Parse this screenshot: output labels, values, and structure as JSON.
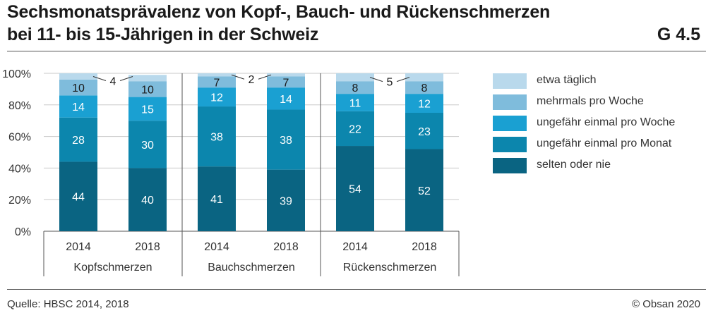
{
  "header": {
    "title_line1": "Sechsmonatsprävalenz von Kopf-, Bauch- und Rückenschmerzen",
    "title_line2": "bei 11- bis 15-Jährigen in der Schweiz",
    "figure_number": "G 4.5"
  },
  "footer": {
    "source": "Quelle: HBSC 2014, 2018",
    "copyright": "© Obsan 2020"
  },
  "colors": {
    "etwa_taeglich": "#b9d9ec",
    "mehrmals_pro_woche": "#7fbcdc",
    "einmal_pro_woche": "#1aa0d2",
    "einmal_pro_monat": "#0c86ad",
    "selten_oder_nie": "#0a6482"
  },
  "chart_data": {
    "type": "bar",
    "stacked": true,
    "ylim": [
      0,
      100
    ],
    "yticks": [
      "0%",
      "20%",
      "40%",
      "60%",
      "80%",
      "100%"
    ],
    "ytick_values": [
      0,
      20,
      40,
      60,
      80,
      100
    ],
    "groups": [
      "Kopfschmerzen",
      "Bauchschmerzen",
      "Rückenschmerzen"
    ],
    "categories": [
      "2014",
      "2018",
      "2014",
      "2018",
      "2014",
      "2018"
    ],
    "series": [
      {
        "name": "selten oder nie",
        "color_key": "selten_oder_nie",
        "values": [
          44,
          40,
          41,
          39,
          54,
          52
        ]
      },
      {
        "name": "ungefähr einmal pro Monat",
        "color_key": "einmal_pro_monat",
        "values": [
          28,
          30,
          38,
          38,
          22,
          23
        ]
      },
      {
        "name": "ungefähr einmal pro Woche",
        "color_key": "einmal_pro_woche",
        "values": [
          14,
          15,
          12,
          14,
          11,
          12
        ]
      },
      {
        "name": "mehrmals pro Woche",
        "color_key": "mehrmals_pro_woche",
        "values": [
          10,
          10,
          7,
          7,
          8,
          8
        ]
      },
      {
        "name": "etwa täglich",
        "color_key": "etwa_taeglich",
        "values": [
          4,
          4,
          2,
          2,
          5,
          5
        ]
      }
    ],
    "outside_labels": [
      "4",
      "2",
      "5"
    ],
    "legend": [
      "etwa täglich",
      "mehrmals pro Woche",
      "ungefähr einmal pro Woche",
      "ungefähr einmal pro Monat",
      "selten oder nie"
    ],
    "legend_color_keys": [
      "etwa_taeglich",
      "mehrmals_pro_woche",
      "einmal_pro_woche",
      "einmal_pro_monat",
      "selten_oder_nie"
    ],
    "legend_position": "right"
  }
}
